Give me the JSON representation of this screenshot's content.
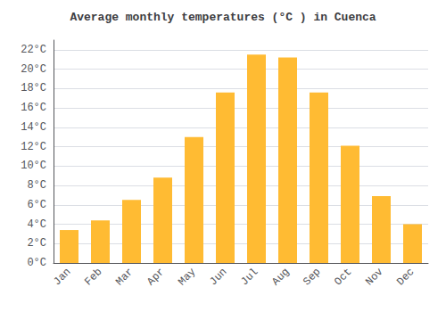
{
  "chart_data": {
    "type": "bar",
    "title": "Average monthly temperatures (°C ) in Cuenca",
    "categories": [
      "Jan",
      "Feb",
      "Mar",
      "Apr",
      "May",
      "Jun",
      "Jul",
      "Aug",
      "Sep",
      "Oct",
      "Nov",
      "Dec"
    ],
    "values": [
      3.4,
      4.4,
      6.5,
      8.8,
      13.0,
      17.6,
      21.5,
      21.2,
      17.6,
      12.1,
      6.9,
      4.0
    ],
    "color": "#FFBB33",
    "ylim": [
      0,
      23
    ],
    "yticks": [
      {
        "value": 0,
        "label": "0°C"
      },
      {
        "value": 2,
        "label": "2°C"
      },
      {
        "value": 4,
        "label": "4°C"
      },
      {
        "value": 6,
        "label": "6°C"
      },
      {
        "value": 8,
        "label": "8°C"
      },
      {
        "value": 10,
        "label": "10°C"
      },
      {
        "value": 12,
        "label": "12°C"
      },
      {
        "value": 14,
        "label": "14°C"
      },
      {
        "value": 16,
        "label": "16°C"
      },
      {
        "value": 18,
        "label": "18°C"
      },
      {
        "value": 20,
        "label": "20°C"
      },
      {
        "value": 22,
        "label": "22°C"
      }
    ],
    "grid": true
  }
}
